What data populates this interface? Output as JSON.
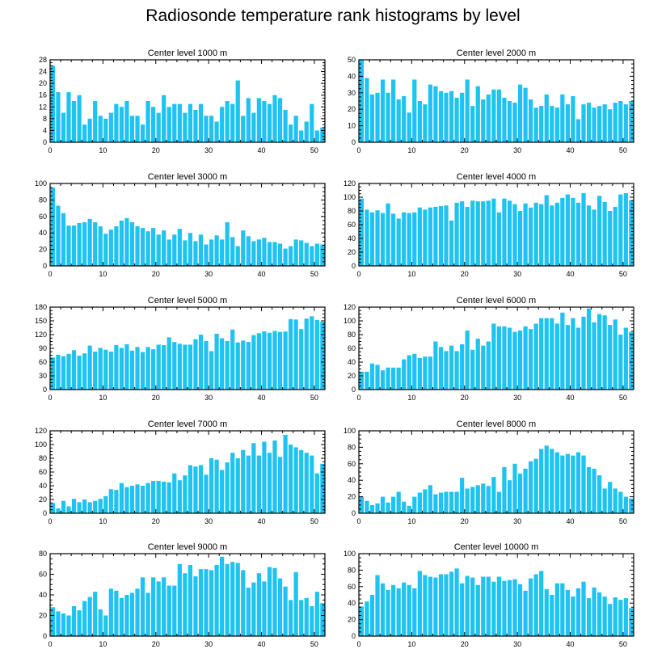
{
  "figure": {
    "title": "Radiosonde temperature rank histograms by level"
  },
  "colors": {
    "bar": "#1ec3f2",
    "axis": "#000000",
    "background": "#ffffff"
  },
  "chart_data": [
    {
      "type": "bar",
      "title": "Center level 1000 m",
      "xlim": [
        0,
        52
      ],
      "ylim": [
        0,
        28
      ],
      "xticks": [
        0,
        10,
        20,
        30,
        40,
        50
      ],
      "yticks": [
        0,
        4,
        8,
        12,
        16,
        20,
        24,
        28
      ],
      "values": [
        26,
        17,
        10,
        17,
        14,
        16,
        6,
        8,
        14,
        9,
        8,
        10,
        13,
        12,
        14,
        9,
        9,
        6,
        14,
        12,
        10,
        16,
        12,
        13,
        13,
        10,
        13,
        11,
        13,
        9,
        9,
        7,
        12,
        14,
        13,
        21,
        9,
        15,
        10,
        15,
        14,
        13,
        16,
        15,
        11,
        6,
        9,
        4,
        7,
        13,
        4,
        5
      ]
    },
    {
      "type": "bar",
      "title": "Center level 2000 m",
      "xlim": [
        0,
        52
      ],
      "ylim": [
        0,
        50
      ],
      "xticks": [
        0,
        10,
        20,
        30,
        40,
        50
      ],
      "yticks": [
        0,
        10,
        20,
        30,
        40,
        50
      ],
      "values": [
        50,
        39,
        29,
        30,
        38,
        30,
        38,
        26,
        28,
        18,
        38,
        25,
        23,
        35,
        34,
        31,
        30,
        31,
        27,
        30,
        38,
        22,
        34,
        26,
        29,
        32,
        32,
        27,
        25,
        24,
        35,
        33,
        26,
        21,
        22,
        29,
        22,
        21,
        29,
        23,
        28,
        14,
        23,
        24,
        21,
        22,
        23,
        20,
        24,
        25,
        23,
        25
      ]
    },
    {
      "type": "bar",
      "title": "Center level 3000 m",
      "xlim": [
        0,
        52
      ],
      "ylim": [
        0,
        100
      ],
      "xticks": [
        0,
        10,
        20,
        30,
        40,
        50
      ],
      "yticks": [
        0,
        20,
        40,
        60,
        80,
        100
      ],
      "values": [
        95,
        73,
        64,
        49,
        49,
        52,
        53,
        57,
        53,
        48,
        39,
        44,
        48,
        55,
        58,
        53,
        48,
        46,
        42,
        46,
        38,
        43,
        32,
        38,
        45,
        31,
        40,
        30,
        38,
        26,
        32,
        37,
        32,
        53,
        35,
        24,
        43,
        36,
        30,
        32,
        34,
        29,
        29,
        27,
        21,
        24,
        32,
        31,
        28,
        24,
        27,
        26
      ]
    },
    {
      "type": "bar",
      "title": "Center level 4000 m",
      "xlim": [
        0,
        52
      ],
      "ylim": [
        0,
        120
      ],
      "xticks": [
        0,
        10,
        20,
        30,
        40,
        50
      ],
      "yticks": [
        0,
        20,
        40,
        60,
        80,
        100,
        120
      ],
      "values": [
        98,
        82,
        78,
        81,
        77,
        91,
        76,
        69,
        78,
        77,
        78,
        85,
        82,
        85,
        86,
        87,
        88,
        66,
        92,
        94,
        86,
        95,
        94,
        94,
        95,
        98,
        78,
        98,
        95,
        90,
        80,
        91,
        85,
        92,
        90,
        103,
        88,
        92,
        99,
        104,
        99,
        92,
        106,
        88,
        82,
        102,
        93,
        80,
        86,
        104,
        106,
        96
      ]
    },
    {
      "type": "bar",
      "title": "Center level 5000 m",
      "xlim": [
        0,
        52
      ],
      "ylim": [
        0,
        180
      ],
      "xticks": [
        0,
        10,
        20,
        30,
        40,
        50
      ],
      "yticks": [
        0,
        30,
        60,
        90,
        120,
        150,
        180
      ],
      "values": [
        70,
        76,
        73,
        78,
        86,
        74,
        79,
        96,
        83,
        91,
        87,
        83,
        97,
        91,
        99,
        85,
        93,
        82,
        93,
        88,
        98,
        97,
        114,
        104,
        100,
        98,
        98,
        110,
        120,
        106,
        84,
        122,
        112,
        106,
        131,
        103,
        107,
        104,
        119,
        123,
        127,
        124,
        128,
        126,
        127,
        154,
        153,
        132,
        155,
        160,
        152,
        148
      ]
    },
    {
      "type": "bar",
      "title": "Center level 6000 m",
      "xlim": [
        0,
        52
      ],
      "ylim": [
        0,
        120
      ],
      "xticks": [
        0,
        10,
        20,
        30,
        40,
        50
      ],
      "yticks": [
        0,
        20,
        40,
        60,
        80,
        100,
        120
      ],
      "values": [
        26,
        26,
        38,
        36,
        28,
        32,
        32,
        32,
        44,
        50,
        52,
        46,
        48,
        48,
        70,
        62,
        56,
        64,
        56,
        66,
        86,
        58,
        74,
        64,
        70,
        96,
        92,
        92,
        90,
        84,
        86,
        92,
        88,
        96,
        104,
        104,
        104,
        96,
        112,
        94,
        104,
        90,
        106,
        118,
        98,
        110,
        108,
        94,
        102,
        80,
        90,
        84
      ]
    },
    {
      "type": "bar",
      "title": "Center level 7000 m",
      "xlim": [
        0,
        52
      ],
      "ylim": [
        0,
        120
      ],
      "xticks": [
        0,
        10,
        20,
        30,
        40,
        50
      ],
      "yticks": [
        0,
        20,
        40,
        60,
        80,
        100,
        120
      ],
      "values": [
        15,
        7,
        18,
        10,
        21,
        16,
        20,
        16,
        18,
        21,
        25,
        35,
        34,
        44,
        38,
        40,
        42,
        40,
        44,
        47,
        47,
        46,
        45,
        58,
        48,
        55,
        70,
        68,
        70,
        56,
        80,
        78,
        63,
        74,
        88,
        80,
        92,
        84,
        102,
        84,
        104,
        88,
        106,
        82,
        114,
        100,
        96,
        92,
        88,
        84,
        58,
        72
      ]
    },
    {
      "type": "bar",
      "title": "Center level 8000 m",
      "xlim": [
        0,
        52
      ],
      "ylim": [
        0,
        100
      ],
      "xticks": [
        0,
        10,
        20,
        30,
        40,
        50
      ],
      "yticks": [
        0,
        20,
        40,
        60,
        80,
        100
      ],
      "values": [
        20,
        15,
        10,
        12,
        20,
        13,
        20,
        26,
        14,
        9,
        20,
        25,
        29,
        34,
        23,
        25,
        26,
        26,
        26,
        43,
        30,
        32,
        34,
        36,
        33,
        44,
        26,
        56,
        40,
        60,
        48,
        54,
        63,
        66,
        78,
        82,
        78,
        74,
        70,
        72,
        70,
        74,
        70,
        56,
        54,
        46,
        30,
        38,
        30,
        26,
        20,
        18
      ]
    },
    {
      "type": "bar",
      "title": "Center level 9000 m",
      "xlim": [
        0,
        52
      ],
      "ylim": [
        0,
        80
      ],
      "xticks": [
        0,
        10,
        20,
        30,
        40,
        50
      ],
      "yticks": [
        0,
        20,
        40,
        60,
        80
      ],
      "values": [
        28,
        24,
        22,
        20,
        29,
        25,
        34,
        38,
        43,
        26,
        20,
        46,
        44,
        37,
        40,
        42,
        46,
        57,
        42,
        57,
        53,
        57,
        49,
        49,
        70,
        61,
        69,
        58,
        65,
        65,
        64,
        69,
        77,
        70,
        72,
        71,
        64,
        47,
        52,
        61,
        53,
        67,
        66,
        56,
        48,
        35,
        62,
        35,
        37,
        29,
        43,
        32
      ]
    },
    {
      "type": "bar",
      "title": "Center level 10000 m",
      "xlim": [
        0,
        52
      ],
      "ylim": [
        0,
        100
      ],
      "xticks": [
        0,
        10,
        20,
        30,
        40,
        50
      ],
      "yticks": [
        0,
        20,
        40,
        60,
        80,
        100
      ],
      "values": [
        36,
        42,
        50,
        74,
        64,
        56,
        62,
        58,
        65,
        62,
        58,
        79,
        74,
        72,
        71,
        75,
        75,
        78,
        82,
        64,
        73,
        71,
        62,
        72,
        72,
        66,
        72,
        67,
        68,
        69,
        63,
        55,
        70,
        75,
        79,
        57,
        50,
        64,
        64,
        56,
        48,
        58,
        66,
        46,
        59,
        53,
        48,
        39,
        47,
        44,
        46,
        34
      ]
    }
  ]
}
